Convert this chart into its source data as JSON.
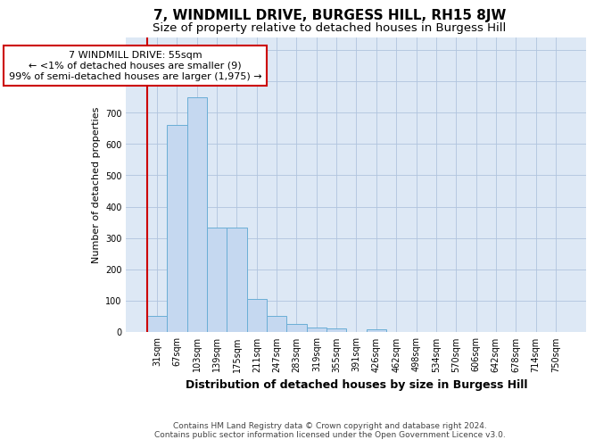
{
  "title": "7, WINDMILL DRIVE, BURGESS HILL, RH15 8JW",
  "subtitle": "Size of property relative to detached houses in Burgess Hill",
  "xlabel": "Distribution of detached houses by size in Burgess Hill",
  "ylabel": "Number of detached properties",
  "footer_line1": "Contains HM Land Registry data © Crown copyright and database right 2024.",
  "footer_line2": "Contains public sector information licensed under the Open Government Licence v3.0.",
  "bar_labels": [
    "31sqm",
    "67sqm",
    "103sqm",
    "139sqm",
    "175sqm",
    "211sqm",
    "247sqm",
    "283sqm",
    "319sqm",
    "355sqm",
    "391sqm",
    "426sqm",
    "462sqm",
    "498sqm",
    "534sqm",
    "570sqm",
    "606sqm",
    "642sqm",
    "678sqm",
    "714sqm",
    "750sqm"
  ],
  "bar_values": [
    50,
    660,
    748,
    333,
    333,
    106,
    50,
    26,
    15,
    10,
    0,
    8,
    0,
    0,
    0,
    0,
    0,
    0,
    0,
    0,
    0
  ],
  "bar_color": "#c5d8f0",
  "bar_edge_color": "#6aaed6",
  "plot_bg_color": "#dde8f5",
  "background_color": "#ffffff",
  "grid_color": "#b0c4de",
  "annotation_text_line1": "7 WINDMILL DRIVE: 55sqm",
  "annotation_text_line2": "← <1% of detached houses are smaller (9)",
  "annotation_text_line3": "99% of semi-detached houses are larger (1,975) →",
  "annotation_box_edge_color": "#cc0000",
  "red_line_color": "#cc0000",
  "ylim": [
    0,
    940
  ],
  "yticks": [
    0,
    100,
    200,
    300,
    400,
    500,
    600,
    700,
    800,
    900
  ],
  "title_fontsize": 11,
  "subtitle_fontsize": 9.5,
  "xlabel_fontsize": 9,
  "ylabel_fontsize": 8,
  "tick_fontsize": 7,
  "annot_fontsize": 8,
  "footer_fontsize": 6.5
}
